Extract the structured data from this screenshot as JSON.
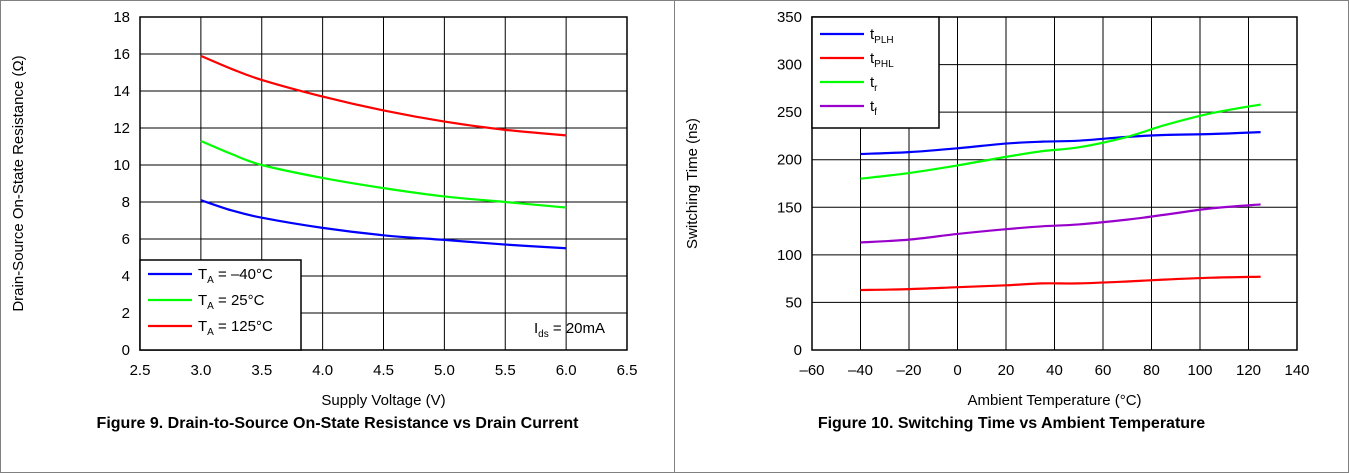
{
  "figures": [
    {
      "caption": "Figure 9. Drain-to-Source On-State Resistance vs Drain Current"
    },
    {
      "caption": "Figure 10. Switching Time vs Ambient Temperature"
    }
  ],
  "chart_data": [
    {
      "type": "line",
      "title": "",
      "xlabel": "Supply Voltage (V)",
      "ylabel": "Drain-Source On-State Resistance (Ω)",
      "xlim": [
        2.5,
        6.5
      ],
      "ylim": [
        0,
        18
      ],
      "xticks": [
        "2.5",
        "3.0",
        "3.5",
        "4.0",
        "4.5",
        "5.0",
        "5.5",
        "6.0",
        "6.5"
      ],
      "yticks": [
        "0",
        "2",
        "4",
        "6",
        "8",
        "10",
        "12",
        "14",
        "16",
        "18"
      ],
      "grid": true,
      "legend_position": "bottom-left",
      "annotation": {
        "main": "I",
        "sub": "ds",
        "rest": " = 20mA"
      },
      "series": [
        {
          "name": "TA = –40°C",
          "label_main": "T",
          "label_sub": "A",
          "label_rest": " = –40°C",
          "color": "#0000ff",
          "x": [
            3.0,
            3.25,
            3.5,
            4.0,
            4.5,
            5.0,
            5.5,
            6.0
          ],
          "y": [
            8.1,
            7.55,
            7.15,
            6.6,
            6.2,
            5.95,
            5.7,
            5.5
          ]
        },
        {
          "name": "TA = 25°C",
          "label_main": "T",
          "label_sub": "A",
          "label_rest": " = 25°C",
          "color": "#00ff00",
          "x": [
            3.0,
            3.25,
            3.5,
            4.0,
            4.5,
            5.0,
            5.5,
            6.0
          ],
          "y": [
            11.3,
            10.6,
            10.0,
            9.3,
            8.75,
            8.3,
            8.0,
            7.7
          ]
        },
        {
          "name": "TA = 125°C",
          "label_main": "T",
          "label_sub": "A",
          "label_rest": " = 125°C",
          "color": "#ff0000",
          "x": [
            3.0,
            3.25,
            3.5,
            4.0,
            4.5,
            5.0,
            5.5,
            6.0
          ],
          "y": [
            15.9,
            15.2,
            14.6,
            13.7,
            12.95,
            12.35,
            11.9,
            11.6
          ]
        }
      ]
    },
    {
      "type": "line",
      "title": "",
      "xlabel": "Ambient Temperature (°C)",
      "ylabel": "Switching Time (ns)",
      "xlim": [
        -60,
        140
      ],
      "ylim": [
        0,
        350
      ],
      "xticks": [
        "–60",
        "–40",
        "–20",
        "0",
        "20",
        "40",
        "60",
        "80",
        "100",
        "120",
        "140"
      ],
      "yticks": [
        "0",
        "50",
        "100",
        "150",
        "200",
        "250",
        "300",
        "350"
      ],
      "grid": true,
      "legend_position": "top-left",
      "series": [
        {
          "name": "tPLH",
          "label_main": "t",
          "label_sub": "PLH",
          "label_rest": "",
          "color": "#0000ff",
          "x": [
            -40,
            -20,
            0,
            20,
            35,
            50,
            70,
            85,
            105,
            125
          ],
          "y": [
            206,
            208,
            212,
            217,
            219,
            220,
            224,
            226,
            227,
            229
          ]
        },
        {
          "name": "tPHL",
          "label_main": "t",
          "label_sub": "PHL",
          "label_rest": "",
          "color": "#ff0000",
          "x": [
            -40,
            -20,
            0,
            20,
            35,
            50,
            70,
            85,
            105,
            125
          ],
          "y": [
            63,
            64,
            66,
            68,
            70,
            70,
            72,
            74,
            76,
            77
          ]
        },
        {
          "name": "tr",
          "label_main": "t",
          "label_sub": "r",
          "label_rest": "",
          "color": "#00ff00",
          "x": [
            -40,
            -20,
            0,
            20,
            35,
            50,
            70,
            85,
            105,
            125
          ],
          "y": [
            180,
            186,
            194,
            203,
            209,
            213,
            224,
            236,
            249,
            258
          ]
        },
        {
          "name": "tf",
          "label_main": "t",
          "label_sub": "f",
          "label_rest": "",
          "color": "#9900cc",
          "x": [
            -40,
            -20,
            0,
            20,
            35,
            50,
            70,
            85,
            105,
            125
          ],
          "y": [
            113,
            116,
            122,
            127,
            130,
            132,
            137,
            142,
            149,
            153
          ]
        }
      ]
    }
  ]
}
